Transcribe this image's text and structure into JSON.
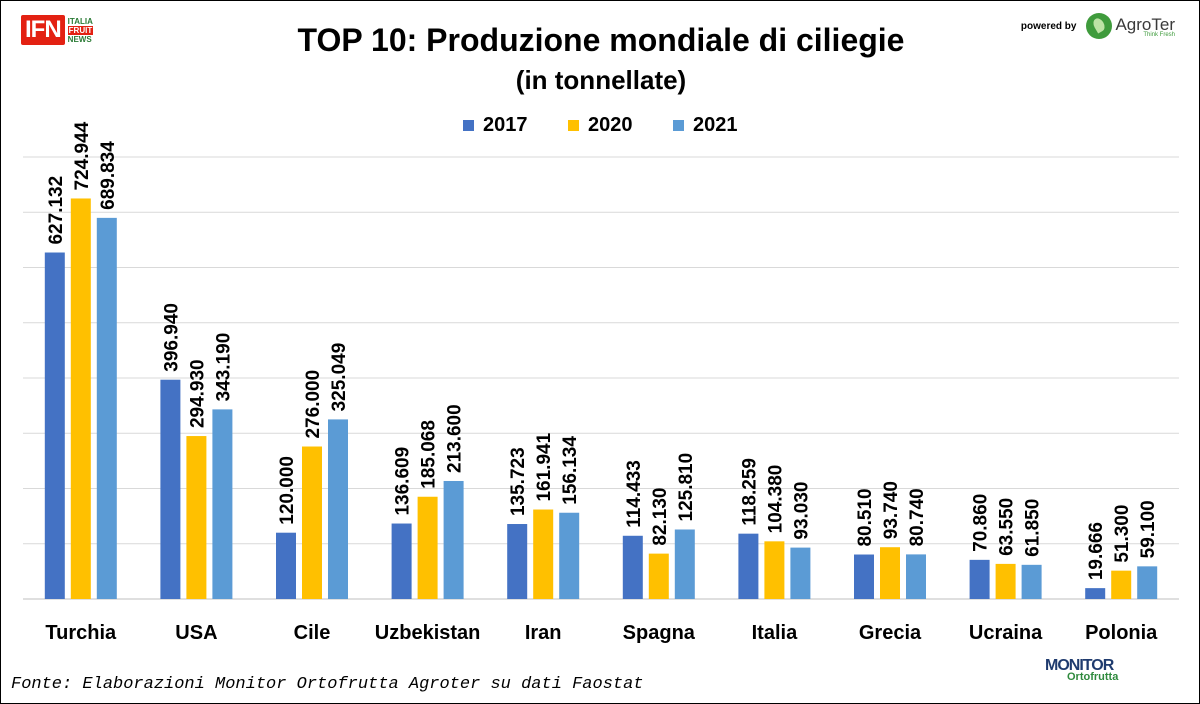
{
  "header": {
    "title": "TOP 10: Produzione mondiale di ciliegie",
    "subtitle": "(in tonnellate)",
    "logo_left": {
      "main": "IFN",
      "line1": "ITALIA",
      "line2": "FRUIT",
      "line3": "NEWS"
    },
    "powered_by": "powered by",
    "logo_right": {
      "name": "AgroTer",
      "tagline": "Think Fresh"
    }
  },
  "footer": {
    "source": "Fonte: Elaborazioni Monitor Ortofrutta Agroter su dati Faostat",
    "logo": {
      "main": "MONITOR",
      "sub": "Ortofrutta"
    }
  },
  "chart_data": {
    "type": "bar",
    "title": "TOP 10: Produzione mondiale di ciliegie",
    "subtitle": "(in tonnellate)",
    "categories": [
      "Turchia",
      "USA",
      "Cile",
      "Uzbekistan",
      "Iran",
      "Spagna",
      "Italia",
      "Grecia",
      "Ucraina",
      "Polonia"
    ],
    "series": [
      {
        "name": "2017",
        "color": "#4472c4",
        "values": [
          627132,
          396940,
          120000,
          136609,
          135723,
          114433,
          118259,
          80510,
          70860,
          19666
        ],
        "labels": [
          "627.132",
          "396.940",
          "120.000",
          "136.609",
          "135.723",
          "114.433",
          "118.259",
          "80.510",
          "70.860",
          "19.666"
        ]
      },
      {
        "name": "2020",
        "color": "#ffc000",
        "values": [
          724944,
          294930,
          276000,
          185068,
          161941,
          82130,
          104380,
          93740,
          63550,
          51300
        ],
        "labels": [
          "724.944",
          "294.930",
          "276.000",
          "185.068",
          "161.941",
          "82.130",
          "104.380",
          "93.740",
          "63.550",
          "51.300"
        ]
      },
      {
        "name": "2021",
        "color": "#5b9bd5",
        "values": [
          689834,
          343190,
          325049,
          213600,
          156134,
          125810,
          93030,
          80740,
          61850,
          59100
        ],
        "labels": [
          "689.834",
          "343.190",
          "325.049",
          "213.600",
          "156.134",
          "125.810",
          "93.030",
          "80.740",
          "61.850",
          "59.100"
        ]
      }
    ],
    "ylim": [
      0,
      800000
    ],
    "grid": true,
    "legend": "top-center"
  }
}
